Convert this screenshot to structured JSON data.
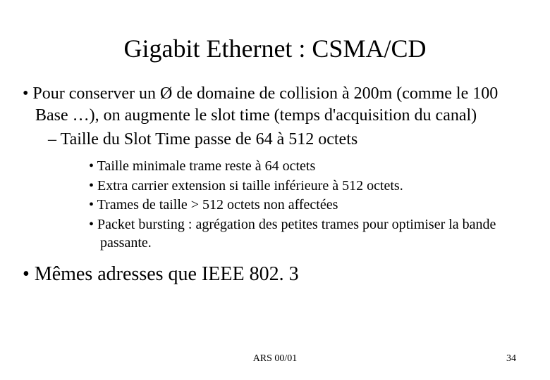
{
  "title": "Gigabit Ethernet : CSMA/CD",
  "bullets": {
    "b1": "Pour conserver un Ø de domaine de collision à 200m (comme le 100 Base …), on augmente le slot time (temps d'acquisition du canal)",
    "b1_sub": "Taille du Slot Time passe de 64 à 512 octets",
    "b1_sub_items": {
      "i1": "Taille minimale trame reste à 64 octets",
      "i2": "Extra carrier extension si taille inférieure à 512 octets.",
      "i3": "Trames de taille > 512 octets non affectées",
      "i4": "Packet bursting : agrégation des petites trames pour optimiser la bande passante."
    },
    "b2": "Mêmes adresses que IEEE 802. 3"
  },
  "footer": {
    "center": "ARS 00/01",
    "page": "34"
  },
  "style": {
    "background": "#ffffff",
    "text_color": "#000000",
    "font_family": "Times New Roman",
    "title_fontsize": 36,
    "l1_fontsize": 24,
    "l2_fontsize": 24,
    "l3_fontsize": 20,
    "l1b_fontsize": 28,
    "footer_fontsize": 14
  }
}
